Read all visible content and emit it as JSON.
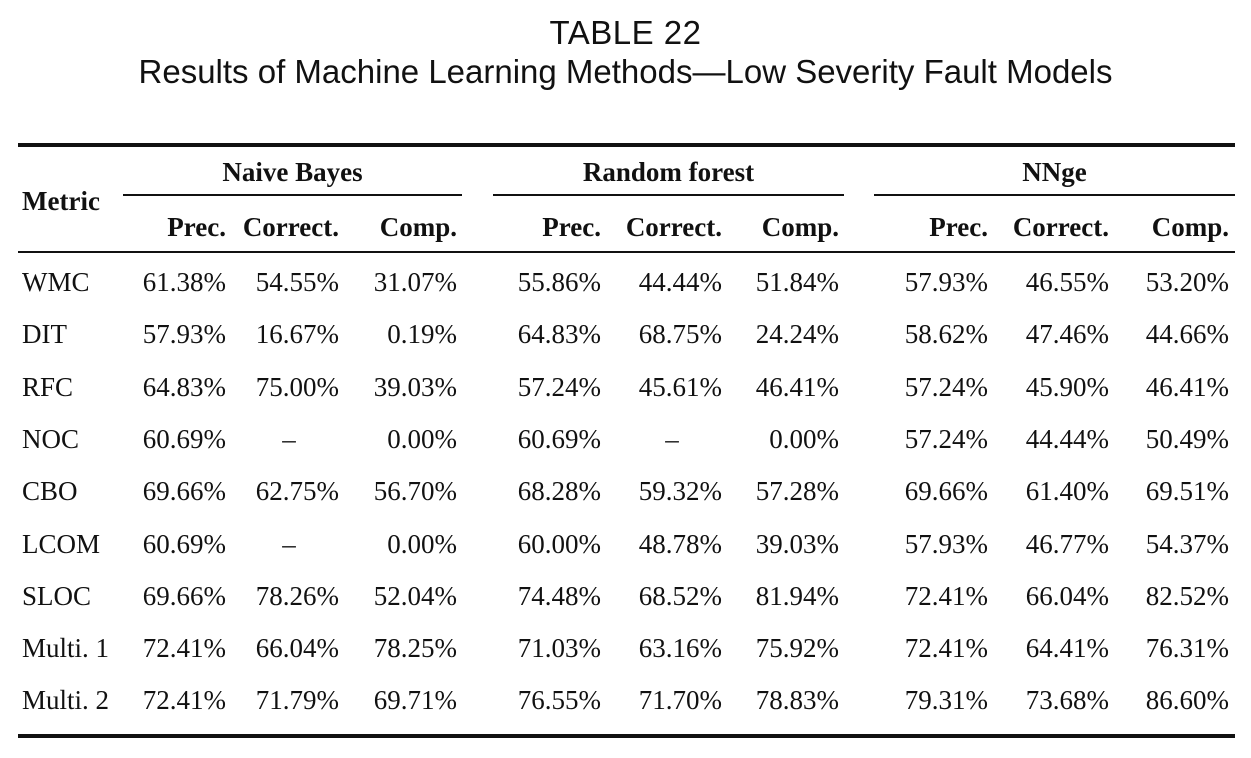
{
  "chart_data": {
    "type": "table",
    "table_number": "TABLE 22",
    "title": "Results of Machine Learning Methods—Low Severity Fault Models",
    "row_header": "Metric",
    "groups": [
      {
        "name": "Naive Bayes",
        "columns": [
          "Prec.",
          "Correct.",
          "Comp."
        ]
      },
      {
        "name": "Random forest",
        "columns": [
          "Prec.",
          "Correct.",
          "Comp."
        ]
      },
      {
        "name": "NNge",
        "columns": [
          "Prec.",
          "Correct.",
          "Comp."
        ]
      }
    ],
    "rows": [
      {
        "metric": "WMC",
        "values": [
          "61.38%",
          "54.55%",
          "31.07%",
          "55.86%",
          "44.44%",
          "51.84%",
          "57.93%",
          "46.55%",
          "53.20%"
        ]
      },
      {
        "metric": "DIT",
        "values": [
          "57.93%",
          "16.67%",
          "0.19%",
          "64.83%",
          "68.75%",
          "24.24%",
          "58.62%",
          "47.46%",
          "44.66%"
        ]
      },
      {
        "metric": "RFC",
        "values": [
          "64.83%",
          "75.00%",
          "39.03%",
          "57.24%",
          "45.61%",
          "46.41%",
          "57.24%",
          "45.90%",
          "46.41%"
        ]
      },
      {
        "metric": "NOC",
        "values": [
          "60.69%",
          "–",
          "0.00%",
          "60.69%",
          "–",
          "0.00%",
          "57.24%",
          "44.44%",
          "50.49%"
        ]
      },
      {
        "metric": "CBO",
        "values": [
          "69.66%",
          "62.75%",
          "56.70%",
          "68.28%",
          "59.32%",
          "57.28%",
          "69.66%",
          "61.40%",
          "69.51%"
        ]
      },
      {
        "metric": "LCOM",
        "values": [
          "60.69%",
          "–",
          "0.00%",
          "60.00%",
          "48.78%",
          "39.03%",
          "57.93%",
          "46.77%",
          "54.37%"
        ]
      },
      {
        "metric": "SLOC",
        "values": [
          "69.66%",
          "78.26%",
          "52.04%",
          "74.48%",
          "68.52%",
          "81.94%",
          "72.41%",
          "66.04%",
          "82.52%"
        ]
      },
      {
        "metric": "Multi. 1",
        "values": [
          "72.41%",
          "66.04%",
          "78.25%",
          "71.03%",
          "63.16%",
          "75.92%",
          "72.41%",
          "64.41%",
          "76.31%"
        ]
      },
      {
        "metric": "Multi. 2",
        "values": [
          "72.41%",
          "71.79%",
          "69.71%",
          "76.55%",
          "71.70%",
          "78.83%",
          "79.31%",
          "73.68%",
          "86.60%"
        ]
      }
    ]
  }
}
